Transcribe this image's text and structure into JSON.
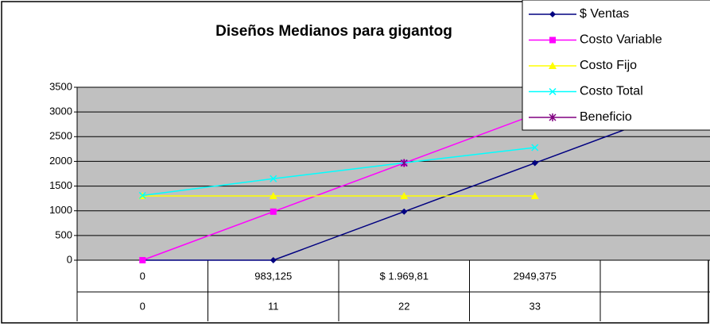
{
  "chart_data": {
    "type": "line",
    "title": "Diseños Medianos para gigantog",
    "categories": [
      "0",
      "983,125",
      "$ 1.969,81",
      "2949,375",
      null
    ],
    "categories2": [
      "0",
      "11",
      "22",
      "33",
      null
    ],
    "series": [
      {
        "name": "$ Ventas",
        "color": "#000080",
        "marker": "diamond",
        "values": [
          0,
          0,
          983,
          1966,
          2949
        ]
      },
      {
        "name": "Costo Variable",
        "color": "#ff00ff",
        "marker": "square",
        "values": [
          0,
          983,
          1966,
          2949,
          null
        ]
      },
      {
        "name": "Costo Fijo",
        "color": "#ffff00",
        "marker": "triangle",
        "values": [
          1300,
          1300,
          1300,
          1300,
          null
        ]
      },
      {
        "name": "Costo Total",
        "color": "#00ffff",
        "marker": "x",
        "values": [
          1310,
          1650,
          1970,
          2280,
          null
        ]
      },
      {
        "name": "Beneficio",
        "color": "#800080",
        "marker": "star",
        "values": [
          null,
          null,
          1966,
          null,
          null
        ]
      }
    ],
    "ylim": [
      0,
      3500
    ],
    "yticks": [
      0,
      500,
      1000,
      1500,
      2000,
      2500,
      3000,
      3500
    ],
    "grid": true,
    "legend": "top-right",
    "plot_color": "#c0c0c0"
  }
}
